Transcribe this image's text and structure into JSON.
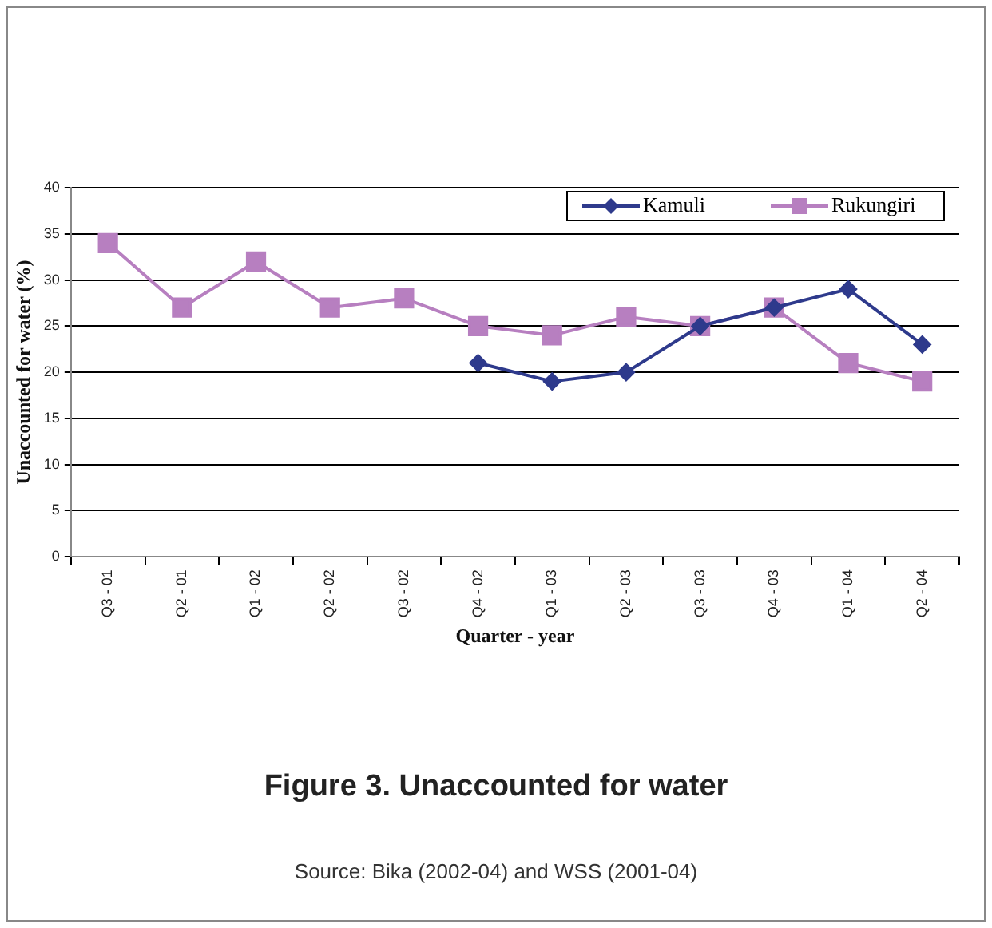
{
  "chart_data": {
    "type": "line",
    "title": "Figure 3. Unaccounted for water",
    "xlabel": "Quarter - year",
    "ylabel": "Unaccounted for water (%)",
    "categories": [
      "Q3 - 01",
      "Q2 - 01",
      "Q1 - 02",
      "Q2 - 02",
      "Q3 - 02",
      "Q4 - 02",
      "Q1 - 03",
      "Q2 - 03",
      "Q3 - 03",
      "Q4 - 03",
      "Q1 - 04",
      "Q2 - 04"
    ],
    "series": [
      {
        "name": "Kamuli",
        "color": "#2e3a8c",
        "marker": "diamond",
        "values": [
          null,
          null,
          null,
          null,
          null,
          21,
          19,
          20,
          25,
          27,
          29,
          23
        ]
      },
      {
        "name": "Rukungiri",
        "color": "#b77fc0",
        "marker": "square",
        "values": [
          34,
          27,
          32,
          27,
          28,
          25,
          24,
          26,
          25,
          27,
          21,
          19
        ]
      }
    ],
    "ylim": [
      0,
      40
    ],
    "yticks": [
      0,
      5,
      10,
      15,
      20,
      25,
      30,
      35,
      40
    ],
    "grid": "y",
    "legend": "top right",
    "line_style": "solid",
    "annotations": [
      "Source: Bika (2002-04) and WSS (2001-04)"
    ]
  }
}
